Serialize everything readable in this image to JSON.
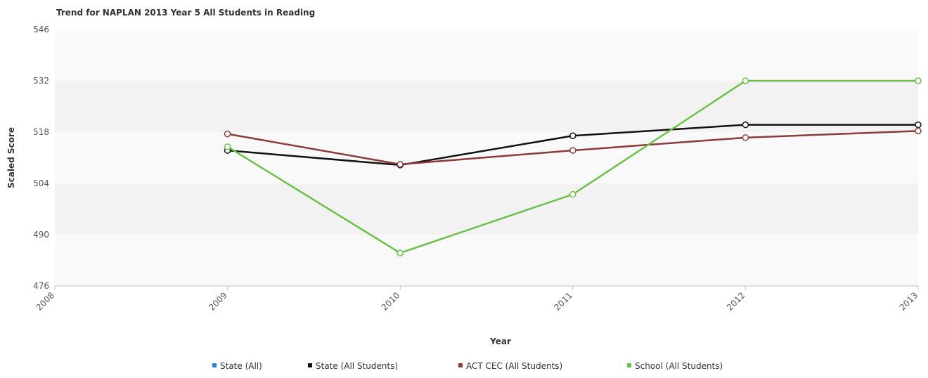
{
  "chart_data": {
    "type": "line",
    "title": "Trend for NAPLAN 2013 Year 5 All Students in Reading",
    "xlabel": "Year",
    "ylabel": "Scaled Score",
    "x": [
      2008,
      2009,
      2010,
      2011,
      2012,
      2013
    ],
    "x_tick_labels": [
      "2008",
      "2009",
      "2010",
      "2011",
      "2012",
      "2013"
    ],
    "y_ticks": [
      476,
      490,
      504,
      518,
      532,
      546
    ],
    "ylim": [
      476,
      546
    ],
    "xlim": [
      2008,
      2013
    ],
    "legend_position": "bottom-center",
    "grid": "alternating horizontal bands",
    "series": [
      {
        "name": "State (All)",
        "color": "#2f7ed8",
        "x": [],
        "values": []
      },
      {
        "name": "State (All Students)",
        "color": "#111111",
        "x": [
          2009,
          2010,
          2011,
          2012,
          2013
        ],
        "values": [
          513,
          509,
          517,
          520,
          520
        ]
      },
      {
        "name": "ACT CEC (All Students)",
        "color": "#8b3a3a",
        "x": [
          2009,
          2010,
          2011,
          2012,
          2013
        ],
        "values": [
          517.5,
          509.2,
          513,
          516.5,
          518.3
        ]
      },
      {
        "name": "School (All Students)",
        "color": "#6cc04a",
        "x": [
          2009,
          2010,
          2011,
          2012,
          2013
        ],
        "values": [
          514,
          485,
          501,
          532,
          532
        ]
      }
    ]
  }
}
